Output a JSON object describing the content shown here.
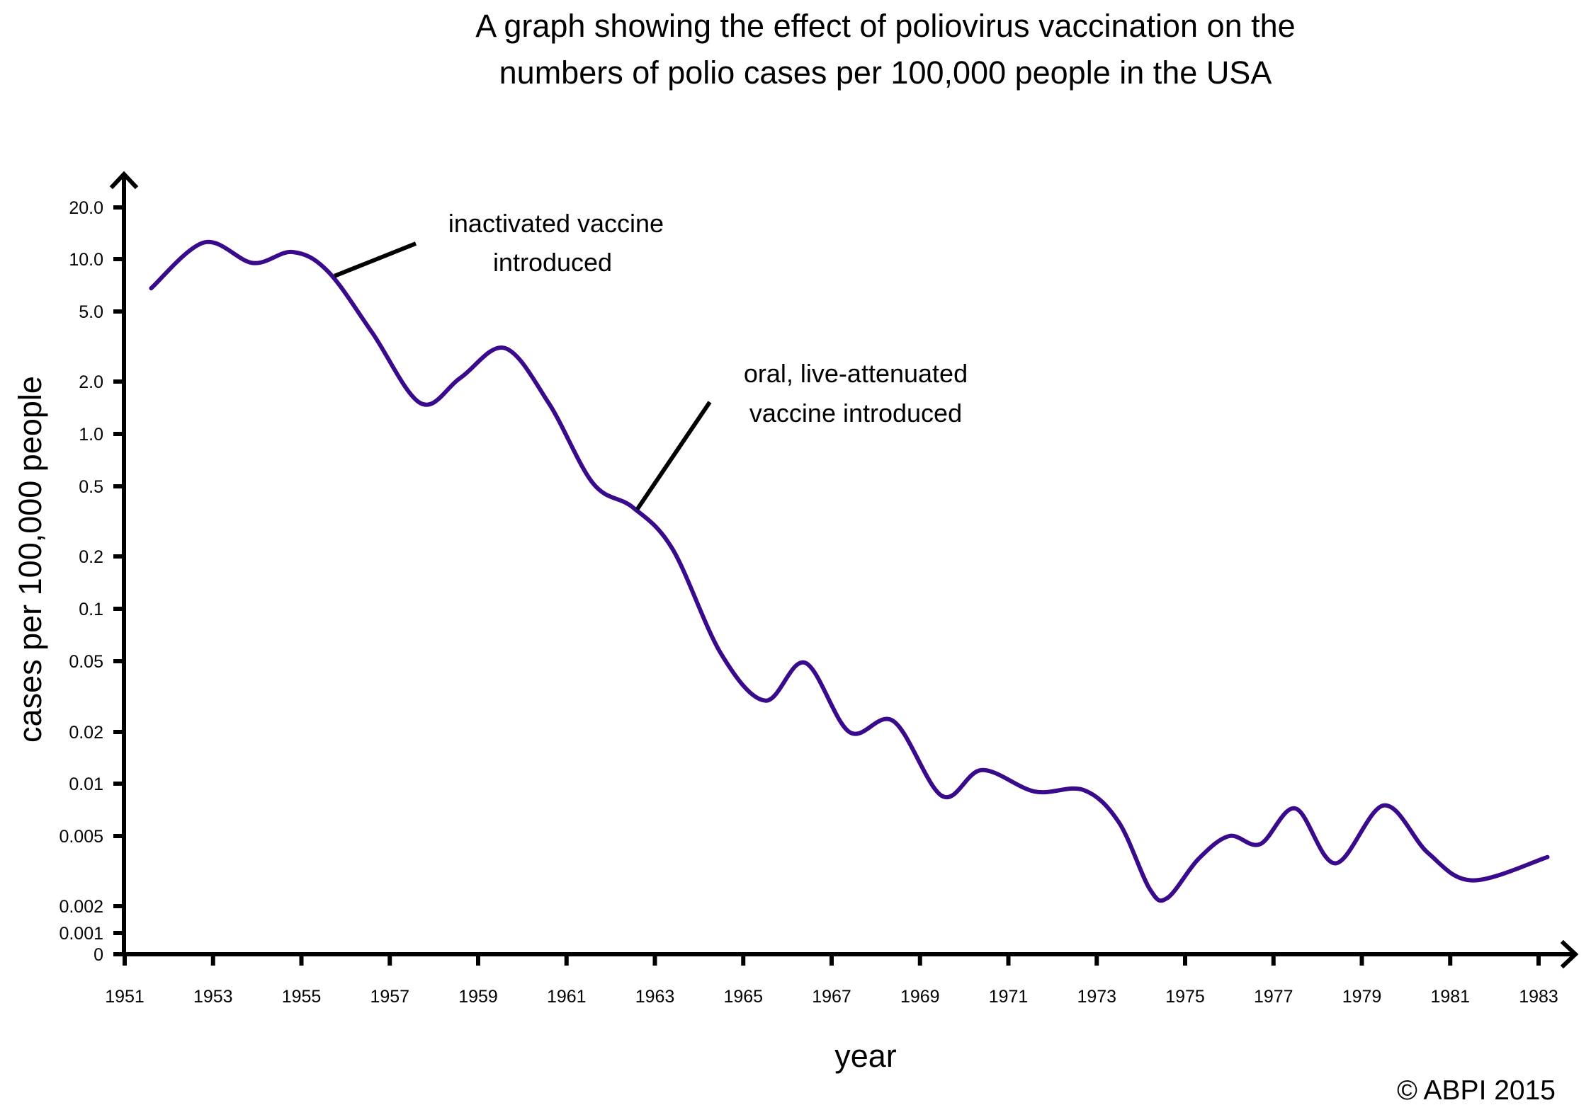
{
  "chart_data": {
    "type": "line",
    "title": [
      "A graph showing the effect of poliovirus vaccination on the",
      "numbers of polio cases per 100,000 people in  the USA"
    ],
    "xlabel": "year",
    "ylabel": "cases per 100,000 people",
    "xlim": [
      1951,
      1983
    ],
    "x_ticks": [
      "1951",
      "1953",
      "1955",
      "1957",
      "1959",
      "1961",
      "1963",
      "1965",
      "1967",
      "1969",
      "1971",
      "1973",
      "1975",
      "1977",
      "1979",
      "1981",
      "1983"
    ],
    "y_ticks": [
      {
        "label": "20.0",
        "value": 20
      },
      {
        "label": "10.0",
        "value": 10
      },
      {
        "label": "5.0",
        "value": 5
      },
      {
        "label": "2.0",
        "value": 2
      },
      {
        "label": "1.0",
        "value": 1
      },
      {
        "label": "0.5",
        "value": 0.5
      },
      {
        "label": "0.2",
        "value": 0.2
      },
      {
        "label": "0.1",
        "value": 0.1
      },
      {
        "label": "0.05",
        "value": 0.05
      },
      {
        "label": "0.02",
        "value": 0.02
      },
      {
        "label": "0.01",
        "value": 0.01
      },
      {
        "label": "0.005",
        "value": 0.005
      },
      {
        "label": "0.002",
        "value": 0.002
      },
      {
        "label": "0.001",
        "value": 0.001
      },
      {
        "label": "0",
        "value": 0
      }
    ],
    "series": [
      {
        "name": "polio cases per 100,000",
        "color": "#3a0a8c",
        "points": [
          {
            "x": 1951.6,
            "y": 6.8
          },
          {
            "x": 1952.8,
            "y": 12.5
          },
          {
            "x": 1953.9,
            "y": 9.5
          },
          {
            "x": 1954.8,
            "y": 11.0
          },
          {
            "x": 1955.6,
            "y": 8.5
          },
          {
            "x": 1956.6,
            "y": 3.8
          },
          {
            "x": 1957.7,
            "y": 1.5
          },
          {
            "x": 1958.6,
            "y": 2.1
          },
          {
            "x": 1959.6,
            "y": 3.1
          },
          {
            "x": 1960.6,
            "y": 1.5
          },
          {
            "x": 1961.6,
            "y": 0.52
          },
          {
            "x": 1962.5,
            "y": 0.38
          },
          {
            "x": 1963.4,
            "y": 0.22
          },
          {
            "x": 1964.5,
            "y": 0.055
          },
          {
            "x": 1965.5,
            "y": 0.03
          },
          {
            "x": 1966.4,
            "y": 0.049
          },
          {
            "x": 1967.4,
            "y": 0.02
          },
          {
            "x": 1968.4,
            "y": 0.023
          },
          {
            "x": 1969.5,
            "y": 0.0085
          },
          {
            "x": 1970.4,
            "y": 0.012
          },
          {
            "x": 1971.6,
            "y": 0.009
          },
          {
            "x": 1972.7,
            "y": 0.0092
          },
          {
            "x": 1973.5,
            "y": 0.006
          },
          {
            "x": 1974.2,
            "y": 0.0025
          },
          {
            "x": 1974.6,
            "y": 0.0019
          },
          {
            "x": 1975.3,
            "y": 0.0037
          },
          {
            "x": 1976.0,
            "y": 0.005
          },
          {
            "x": 1976.7,
            "y": 0.0045
          },
          {
            "x": 1977.5,
            "y": 0.0072
          },
          {
            "x": 1978.4,
            "y": 0.0035
          },
          {
            "x": 1979.5,
            "y": 0.0075
          },
          {
            "x": 1980.5,
            "y": 0.004
          },
          {
            "x": 1981.5,
            "y": 0.0028
          },
          {
            "x": 1983.2,
            "y": 0.0038
          }
        ]
      }
    ],
    "annotations": [
      {
        "name": "inactivated",
        "lines": [
          "inactivated vaccine",
          "introduced"
        ],
        "x": 1955.75,
        "y": 8.0
      },
      {
        "name": "oral",
        "lines": [
          "oral, live-attenuated",
          "vaccine introduced"
        ],
        "x": 1962.6,
        "y": 0.37
      }
    ],
    "legend": "none",
    "grid": false
  },
  "copyright": "© ABPI 2015"
}
